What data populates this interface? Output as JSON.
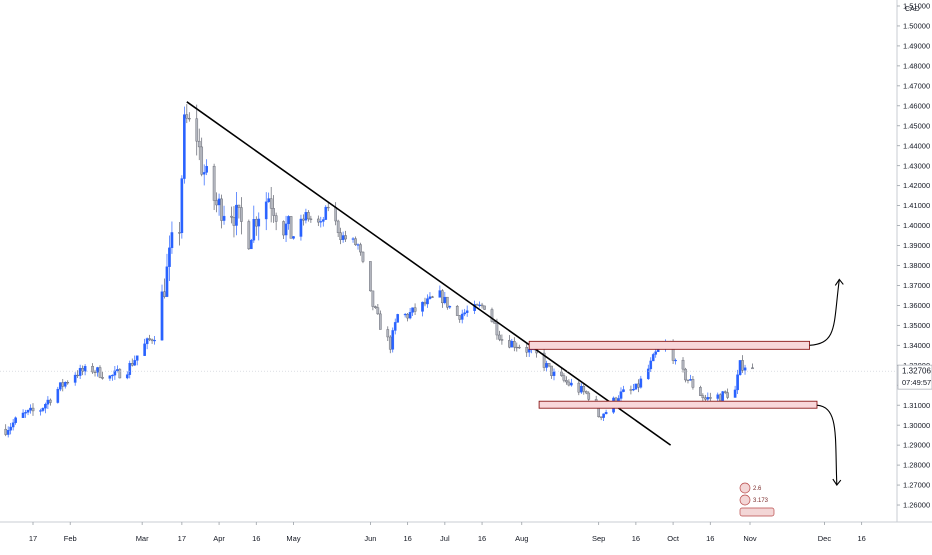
{
  "chart_data": {
    "type": "candlestick",
    "symbol_currency": "CAD",
    "current_price": "1.32706",
    "countdown": "07:49:57",
    "y_ticks": [
      "1.26000",
      "1.27000",
      "1.28000",
      "1.29000",
      "1.30000",
      "1.31000",
      "1.32000",
      "1.33000",
      "1.34000",
      "1.35000",
      "1.36000",
      "1.37000",
      "1.38000",
      "1.39000",
      "1.40000",
      "1.41000",
      "1.42000",
      "1.43000",
      "1.44000",
      "1.45000",
      "1.46000",
      "1.47000",
      "1.48000",
      "1.49000",
      "1.50000",
      "1.51000"
    ],
    "ylim": [
      1.255,
      1.512
    ],
    "x_ticks": [
      {
        "label": "17",
        "date": "2020-01-17"
      },
      {
        "label": "Feb",
        "date": "2020-02-01"
      },
      {
        "label": "Mar",
        "date": "2020-03-01"
      },
      {
        "label": "17",
        "date": "2020-03-17"
      },
      {
        "label": "Apr",
        "date": "2020-04-01"
      },
      {
        "label": "16",
        "date": "2020-04-16"
      },
      {
        "label": "May",
        "date": "2020-05-01"
      },
      {
        "label": "Jun",
        "date": "2020-06-01"
      },
      {
        "label": "16",
        "date": "2020-06-16"
      },
      {
        "label": "Jul",
        "date": "2020-07-01"
      },
      {
        "label": "16",
        "date": "2020-07-16"
      },
      {
        "label": "Aug",
        "date": "2020-08-01"
      },
      {
        "label": "Sep",
        "date": "2020-09-01"
      },
      {
        "label": "16",
        "date": "2020-09-16"
      },
      {
        "label": "Oct",
        "date": "2020-10-01"
      },
      {
        "label": "16",
        "date": "2020-10-16"
      },
      {
        "label": "Nov",
        "date": "2020-11-01"
      },
      {
        "label": "Dec",
        "date": "2020-12-01"
      },
      {
        "label": "16",
        "date": "2020-12-16"
      }
    ],
    "price_path": [
      [
        "2020-01-06",
        1.298
      ],
      [
        "2020-01-13",
        1.305
      ],
      [
        "2020-01-20",
        1.308
      ],
      [
        "2020-01-27",
        1.318
      ],
      [
        "2020-02-03",
        1.326
      ],
      [
        "2020-02-10",
        1.328
      ],
      [
        "2020-02-17",
        1.324
      ],
      [
        "2020-02-24",
        1.328
      ],
      [
        "2020-03-02",
        1.34
      ],
      [
        "2020-03-06",
        1.345
      ],
      [
        "2020-03-10",
        1.37
      ],
      [
        "2020-03-13",
        1.39
      ],
      [
        "2020-03-16",
        1.4
      ],
      [
        "2020-03-18",
        1.45
      ],
      [
        "2020-03-19",
        1.452
      ],
      [
        "2020-03-23",
        1.445
      ],
      [
        "2020-03-25",
        1.43
      ],
      [
        "2020-03-31",
        1.41
      ],
      [
        "2020-04-06",
        1.408
      ],
      [
        "2020-04-13",
        1.395
      ],
      [
        "2020-04-16",
        1.405
      ],
      [
        "2020-04-21",
        1.415
      ],
      [
        "2020-04-27",
        1.4
      ],
      [
        "2020-05-01",
        1.395
      ],
      [
        "2020-05-06",
        1.405
      ],
      [
        "2020-05-12",
        1.4
      ],
      [
        "2020-05-15",
        1.41
      ],
      [
        "2020-05-20",
        1.395
      ],
      [
        "2020-05-27",
        1.39
      ],
      [
        "2020-06-02",
        1.36
      ],
      [
        "2020-06-05",
        1.35
      ],
      [
        "2020-06-09",
        1.34
      ],
      [
        "2020-06-12",
        1.355
      ],
      [
        "2020-06-16",
        1.355
      ],
      [
        "2020-06-22",
        1.36
      ],
      [
        "2020-06-29",
        1.365
      ],
      [
        "2020-07-06",
        1.355
      ],
      [
        "2020-07-13",
        1.358
      ],
      [
        "2020-07-17",
        1.36
      ],
      [
        "2020-07-24",
        1.343
      ],
      [
        "2020-07-31",
        1.34
      ],
      [
        "2020-08-07",
        1.335
      ],
      [
        "2020-08-14",
        1.325
      ],
      [
        "2020-08-21",
        1.32
      ],
      [
        "2020-08-28",
        1.315
      ],
      [
        "2020-09-01",
        1.305
      ],
      [
        "2020-09-04",
        1.307
      ],
      [
        "2020-09-09",
        1.315
      ],
      [
        "2020-09-16",
        1.318
      ],
      [
        "2020-09-21",
        1.328
      ],
      [
        "2020-09-25",
        1.338
      ],
      [
        "2020-09-30",
        1.34
      ],
      [
        "2020-10-02",
        1.33
      ],
      [
        "2020-10-09",
        1.32
      ],
      [
        "2020-10-14",
        1.313
      ],
      [
        "2020-10-21",
        1.315
      ],
      [
        "2020-10-26",
        1.317
      ],
      [
        "2020-10-28",
        1.33
      ],
      [
        "2020-10-30",
        1.33
      ],
      [
        "2020-11-02",
        1.3271
      ]
    ],
    "trendline": {
      "start": [
        "2020-03-19",
        1.462
      ],
      "end": [
        "2020-09-30",
        1.29
      ]
    },
    "zones": [
      {
        "name": "resistance",
        "from": "2020-08-04",
        "to": "2020-11-25",
        "low": 1.338,
        "high": 1.342
      },
      {
        "name": "support",
        "from": "2020-08-08",
        "to": "2020-11-28",
        "low": 1.3085,
        "high": 1.312
      }
    ],
    "arrows": [
      {
        "direction": "up",
        "from": [
          "2020-11-25",
          1.34
        ],
        "to": [
          "2020-12-07",
          1.373
        ]
      },
      {
        "direction": "down",
        "from": [
          "2020-11-28",
          1.31
        ],
        "to": [
          "2020-12-06",
          1.27
        ]
      }
    ],
    "event_badges": [
      "2.6",
      "3.173"
    ],
    "colors": {
      "up": "#2962ff",
      "down": "#b2b5be",
      "trendline": "#000000",
      "zone_fill": "#f8d7da",
      "zone_stroke": "#8b1a1a",
      "axis_text": "#131722"
    }
  }
}
